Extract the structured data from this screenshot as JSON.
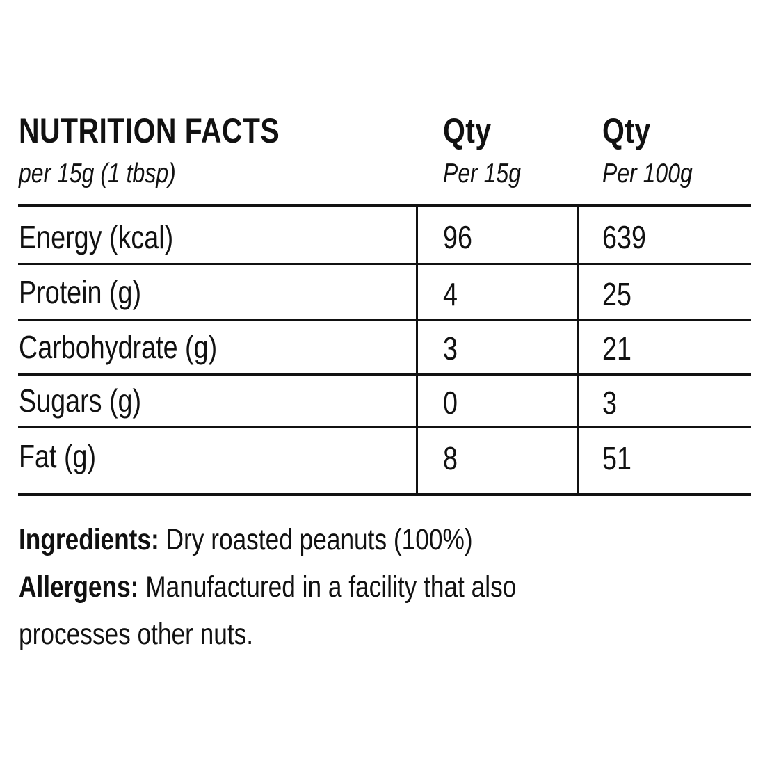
{
  "header": {
    "title": "NUTRITION FACTS",
    "subtitle": "per 15g (1 tbsp)",
    "col1_title": "Qty",
    "col1_sub": "Per 15g",
    "col2_title": "Qty",
    "col2_sub": "Per 100g"
  },
  "rows": [
    {
      "label": "Energy (kcal)",
      "per15": "96",
      "per100": "639"
    },
    {
      "label": "Protein (g)",
      "per15": "4",
      "per100": "25"
    },
    {
      "label": "Carbohydrate (g)",
      "per15": "3",
      "per100": "21"
    },
    {
      "label": "Sugars (g)",
      "per15": "0",
      "per100": "3"
    },
    {
      "label": "Fat (g)",
      "per15": "8",
      "per100": "51"
    }
  ],
  "notes": {
    "ingredients_label": "Ingredients:",
    "ingredients_text": "Dry roasted peanuts (100%)",
    "allergens_label": "Allergens:",
    "allergens_text_line1": "Manufactured in a facility that also",
    "allergens_text_line2": "processes other nuts."
  }
}
